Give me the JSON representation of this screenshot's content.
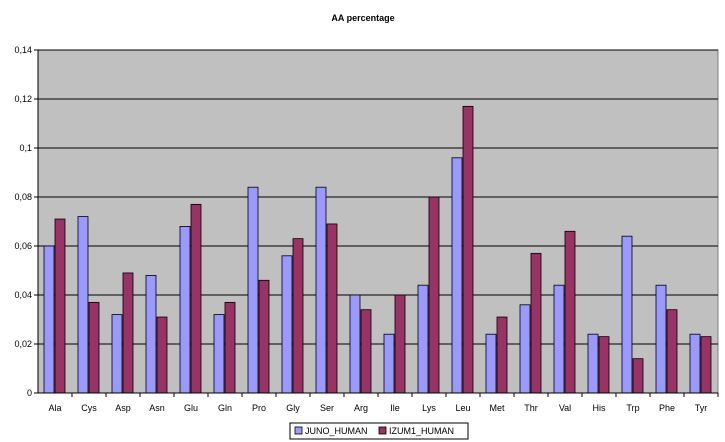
{
  "chart_data": {
    "type": "bar",
    "title": "AA percentage",
    "categories": [
      "Ala",
      "Cys",
      "Asp",
      "Asn",
      "Glu",
      "Gln",
      "Pro",
      "Gly",
      "Ser",
      "Arg",
      "Ile",
      "Lys",
      "Leu",
      "Met",
      "Thr",
      "Val",
      "His",
      "Trp",
      "Phe",
      "Tyr"
    ],
    "series": [
      {
        "name": "JUNO_HUMAN",
        "color": "#9999ff",
        "values": [
          0.06,
          0.072,
          0.032,
          0.048,
          0.068,
          0.032,
          0.084,
          0.056,
          0.084,
          0.04,
          0.024,
          0.044,
          0.096,
          0.024,
          0.036,
          0.044,
          0.024,
          0.064,
          0.044,
          0.024
        ]
      },
      {
        "name": "IZUM1_HUMAN",
        "color": "#993366",
        "values": [
          0.071,
          0.037,
          0.049,
          0.031,
          0.077,
          0.037,
          0.046,
          0.063,
          0.069,
          0.034,
          0.04,
          0.08,
          0.117,
          0.031,
          0.057,
          0.066,
          0.023,
          0.014,
          0.034,
          0.023
        ]
      }
    ],
    "ylim": [
      0,
      0.14
    ],
    "yticks": [
      "0",
      "0,02",
      "0,04",
      "0,06",
      "0,08",
      "0,1",
      "0,12",
      "0,14"
    ],
    "ytick_values": [
      0,
      0.02,
      0.04,
      0.06,
      0.08,
      0.1,
      0.12,
      0.14
    ],
    "plot_background": "#c0c0c0",
    "grid": true,
    "legend_position": "bottom-center"
  }
}
